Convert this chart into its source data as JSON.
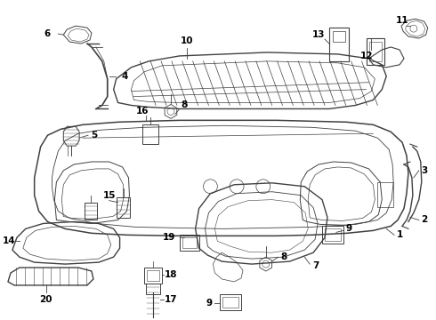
{
  "bg_color": "#ffffff",
  "line_color": "#404040",
  "fig_width": 4.9,
  "fig_height": 3.6,
  "dpi": 100
}
